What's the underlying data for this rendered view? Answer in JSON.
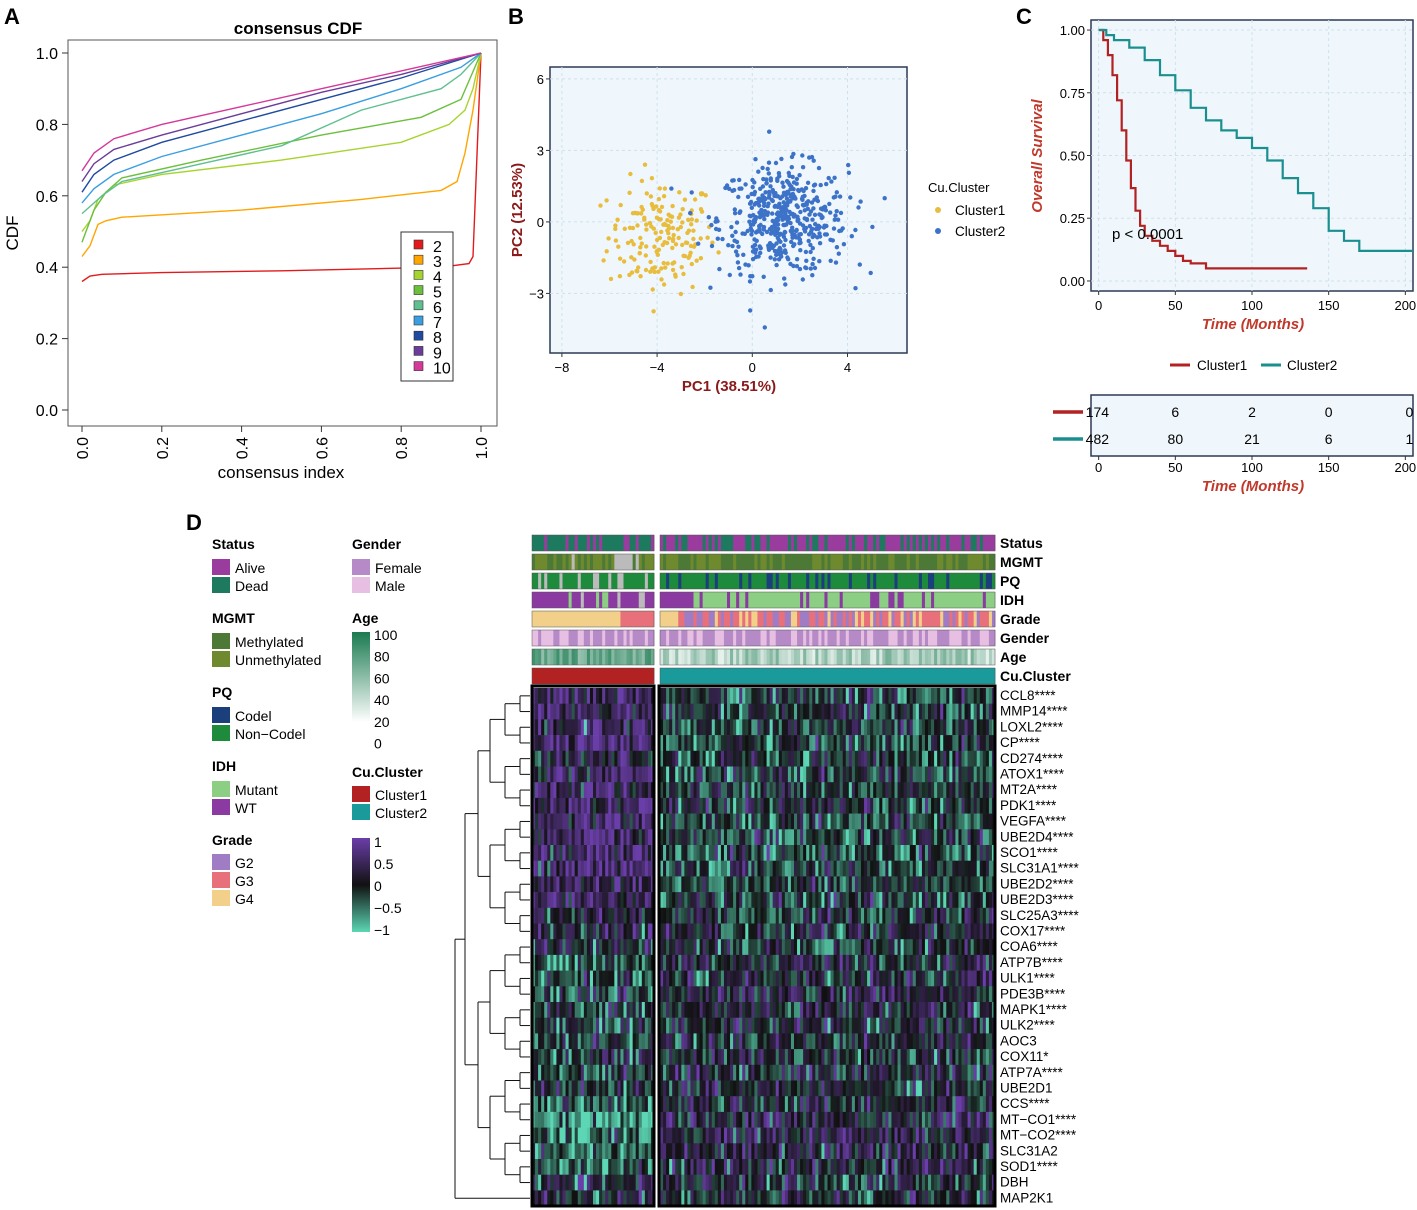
{
  "panel_labels": [
    "A",
    "B",
    "C",
    "D"
  ],
  "colors": {
    "k2": "#e31a1c",
    "k3": "#ffa500",
    "k4": "#a6d42e",
    "k5": "#6cbf3d",
    "k6": "#5fbf8f",
    "k7": "#3a9ee0",
    "k8": "#1f4aa0",
    "k9": "#6a3d9a",
    "k10": "#d6389a",
    "cluster1_pca": "#e8bd3e",
    "cluster2_pca": "#3c72c8",
    "km_cluster1": "#b22222",
    "km_cluster2": "#1a8f8f",
    "alive": "#9a3c9e",
    "dead": "#1d7a5e",
    "methylated": "#4c7a36",
    "unmethylated": "#6f8a2e",
    "codel": "#1a3f7a",
    "noncodel": "#1e8a3c",
    "mutant": "#8ccf84",
    "wt": "#8a3aa0",
    "g2": "#a07cc5",
    "g3": "#e8707a",
    "g4": "#f2d08a",
    "female": "#b58ac7",
    "male": "#e6bfe3",
    "cucluster1": "#b22222",
    "cucluster2": "#1a9a9a",
    "heat_low": "#5cd6b4",
    "heat_mid": "#111111",
    "heat_high": "#6a3ea8",
    "age_low": "#ffffff",
    "age_high": "#1a7a50"
  },
  "chart_data": [
    {
      "id": "A",
      "type": "line",
      "title": "consensus CDF",
      "xlabel": "consensus index",
      "ylabel": "CDF",
      "xlim": [
        0,
        1
      ],
      "ylim": [
        0,
        1
      ],
      "xticks": [
        "0.0",
        "0.2",
        "0.4",
        "0.6",
        "0.8",
        "1.0"
      ],
      "yticks": [
        "0.0",
        "0.2",
        "0.4",
        "0.6",
        "0.8",
        "1.0"
      ],
      "legend": [
        "2",
        "3",
        "4",
        "5",
        "6",
        "7",
        "8",
        "9",
        "10"
      ],
      "legend_position": "bottom-right",
      "series": [
        {
          "name": "2",
          "x": [
            0,
            0.02,
            0.05,
            0.2,
            0.5,
            0.9,
            0.97,
            0.98,
            1.0
          ],
          "y": [
            0.36,
            0.375,
            0.38,
            0.385,
            0.39,
            0.4,
            0.41,
            0.43,
            1.0
          ]
        },
        {
          "name": "3",
          "x": [
            0,
            0.02,
            0.04,
            0.06,
            0.1,
            0.4,
            0.7,
            0.9,
            0.94,
            0.96,
            0.98,
            1.0
          ],
          "y": [
            0.43,
            0.46,
            0.52,
            0.53,
            0.54,
            0.56,
            0.59,
            0.615,
            0.64,
            0.72,
            0.84,
            1.0
          ]
        },
        {
          "name": "4",
          "x": [
            0,
            0.02,
            0.04,
            0.08,
            0.2,
            0.5,
            0.8,
            0.92,
            0.96,
            0.98,
            1.0
          ],
          "y": [
            0.5,
            0.53,
            0.59,
            0.63,
            0.66,
            0.7,
            0.75,
            0.8,
            0.84,
            0.9,
            1.0
          ]
        },
        {
          "name": "5",
          "x": [
            0,
            0.01,
            0.03,
            0.06,
            0.1,
            0.3,
            0.6,
            0.85,
            0.95,
            1.0
          ],
          "y": [
            0.47,
            0.5,
            0.56,
            0.61,
            0.65,
            0.7,
            0.77,
            0.82,
            0.87,
            1.0
          ]
        },
        {
          "name": "6",
          "x": [
            0,
            0.02,
            0.05,
            0.1,
            0.3,
            0.5,
            0.7,
            0.9,
            0.95,
            1.0
          ],
          "y": [
            0.55,
            0.57,
            0.6,
            0.64,
            0.69,
            0.74,
            0.84,
            0.9,
            0.94,
            1.0
          ]
        },
        {
          "name": "7",
          "x": [
            0,
            0.03,
            0.08,
            0.2,
            0.4,
            0.6,
            0.8,
            0.95,
            1.0
          ],
          "y": [
            0.58,
            0.62,
            0.66,
            0.71,
            0.77,
            0.83,
            0.9,
            0.96,
            1.0
          ]
        },
        {
          "name": "8",
          "x": [
            0,
            0.03,
            0.08,
            0.2,
            0.4,
            0.6,
            0.8,
            1.0
          ],
          "y": [
            0.61,
            0.66,
            0.7,
            0.75,
            0.81,
            0.87,
            0.93,
            1.0
          ]
        },
        {
          "name": "9",
          "x": [
            0,
            0.03,
            0.08,
            0.2,
            0.4,
            0.6,
            0.8,
            1.0
          ],
          "y": [
            0.64,
            0.69,
            0.73,
            0.77,
            0.83,
            0.89,
            0.94,
            1.0
          ]
        },
        {
          "name": "10",
          "x": [
            0,
            0.03,
            0.08,
            0.2,
            0.4,
            0.6,
            0.8,
            1.0
          ],
          "y": [
            0.67,
            0.72,
            0.76,
            0.8,
            0.85,
            0.9,
            0.95,
            1.0
          ]
        }
      ]
    },
    {
      "id": "B",
      "type": "scatter",
      "xlabel": "PC1 (38.51%)",
      "ylabel": "PC2 (12.53%)",
      "xlim": [
        -8.5,
        6.5
      ],
      "ylim": [
        -5.5,
        6.5
      ],
      "xticks": [
        -8,
        -4,
        0,
        4
      ],
      "yticks": [
        -3,
        0,
        3,
        6
      ],
      "xtick_labels": [
        "−8",
        "−4",
        "0",
        "4"
      ],
      "ytick_labels": [
        "−3",
        "0",
        "3",
        "6"
      ],
      "legend_title": "Cu.Cluster",
      "legend": [
        "Cluster1",
        "Cluster2"
      ],
      "legend_position": "right",
      "series": [
        {
          "name": "Cluster1",
          "n": 174,
          "center": [
            -3.8,
            -0.6
          ],
          "spread": [
            1.5,
            1.6
          ]
        },
        {
          "name": "Cluster2",
          "n": 482,
          "center": [
            1.3,
            0.1
          ],
          "spread": [
            1.8,
            1.5
          ]
        }
      ]
    },
    {
      "id": "C",
      "type": "line",
      "subtype": "kaplan-meier",
      "xlabel": "Time (Months)",
      "ylabel": "Overall Survival",
      "xlim": [
        -5,
        205
      ],
      "ylim": [
        -0.04,
        1.04
      ],
      "xticks": [
        0,
        50,
        100,
        150,
        200
      ],
      "yticks": [
        "0.00",
        "0.25",
        "0.50",
        "0.75",
        "1.00"
      ],
      "annotation": "p < 0.0001",
      "legend": [
        "Cluster1",
        "Cluster2"
      ],
      "legend_position": "bottom",
      "series": [
        {
          "name": "Cluster1",
          "x": [
            0,
            3,
            6,
            9,
            12,
            15,
            18,
            21,
            24,
            27,
            30,
            35,
            40,
            45,
            50,
            55,
            60,
            70,
            80,
            136
          ],
          "y": [
            1.0,
            0.96,
            0.9,
            0.82,
            0.72,
            0.6,
            0.48,
            0.37,
            0.28,
            0.22,
            0.18,
            0.16,
            0.14,
            0.12,
            0.1,
            0.08,
            0.07,
            0.05,
            0.05,
            0.05
          ]
        },
        {
          "name": "Cluster2",
          "x": [
            0,
            5,
            10,
            20,
            30,
            40,
            50,
            60,
            70,
            80,
            90,
            100,
            110,
            120,
            130,
            140,
            150,
            160,
            170,
            205
          ],
          "y": [
            1.0,
            0.98,
            0.96,
            0.93,
            0.88,
            0.82,
            0.76,
            0.69,
            0.64,
            0.6,
            0.57,
            0.53,
            0.48,
            0.41,
            0.35,
            0.29,
            0.2,
            0.16,
            0.12,
            0.12
          ]
        }
      ],
      "risk_table": {
        "times": [
          0,
          50,
          100,
          150,
          200
        ],
        "rows": [
          {
            "name": "Cluster1",
            "counts": [
              "174",
              "6",
              "2",
              "0",
              "0"
            ]
          },
          {
            "name": "Cluster2",
            "counts": [
              "482",
              "80",
              "21",
              "6",
              "1"
            ]
          }
        ],
        "xlabel": "Time (Months)"
      }
    },
    {
      "id": "D",
      "type": "heatmap",
      "annotation_rows": [
        "Status",
        "MGMT",
        "PQ",
        "IDH",
        "Grade",
        "Gender",
        "Age",
        "Cu.Cluster"
      ],
      "genes": [
        "CCL8****",
        "MMP14****",
        "LOXL2****",
        "CP****",
        "CD274****",
        "ATOX1****",
        "MT2A****",
        "PDK1****",
        "VEGFA****",
        "UBE2D4****",
        "SCO1****",
        "SLC31A1****",
        "UBE2D2****",
        "UBE2D3****",
        "SLC25A3****",
        "COX17****",
        "COA6****",
        "ATP7B****",
        "ULK1****",
        "PDE3B****",
        "MAPK1****",
        "ULK2****",
        "AOC3",
        "COX11*",
        "ATP7A****",
        "UBE2D1",
        "CCS****",
        "MT−CO1****",
        "MT−CO2****",
        "SLC31A2",
        "SOD1****",
        "DBH",
        "MAP2K1"
      ],
      "gene_mean_cluster1": [
        0.5,
        0.4,
        0.4,
        0.5,
        0.4,
        0.5,
        0.4,
        0.5,
        0.6,
        0.5,
        0.5,
        0.5,
        0.5,
        0.5,
        0.2,
        0.1,
        0.1,
        -0.3,
        -0.2,
        -0.3,
        -0.2,
        -0.1,
        -0.1,
        0.0,
        -0.2,
        -0.1,
        -0.4,
        -0.6,
        -0.6,
        -0.3,
        -0.2,
        0.1,
        0.0
      ],
      "clusters": [
        {
          "name": "Cluster1",
          "n": 174
        },
        {
          "name": "Cluster2",
          "n": 482
        }
      ],
      "color_scale": {
        "min": -1,
        "max": 1,
        "ticks": [
          "1",
          "0.5",
          "0",
          "−0.5",
          "−1"
        ]
      },
      "age_scale_ticks": [
        "100",
        "80",
        "60",
        "40",
        "20",
        "0"
      ]
    }
  ],
  "legend_d": {
    "status": {
      "title": "Status",
      "items": [
        "Alive",
        "Dead"
      ]
    },
    "mgmt": {
      "title": "MGMT",
      "items": [
        "Methylated",
        "Unmethylated"
      ]
    },
    "pq": {
      "title": "PQ",
      "items": [
        "Codel",
        "Non−Codel"
      ]
    },
    "idh": {
      "title": "IDH",
      "items": [
        "Mutant",
        "WT"
      ]
    },
    "grade": {
      "title": "Grade",
      "items": [
        "G2",
        "G3",
        "G4"
      ]
    },
    "gender": {
      "title": "Gender",
      "items": [
        "Female",
        "Male"
      ]
    },
    "age": {
      "title": "Age"
    },
    "cucluster": {
      "title": "Cu.Cluster",
      "items": [
        "Cluster1",
        "Cluster2"
      ]
    }
  }
}
